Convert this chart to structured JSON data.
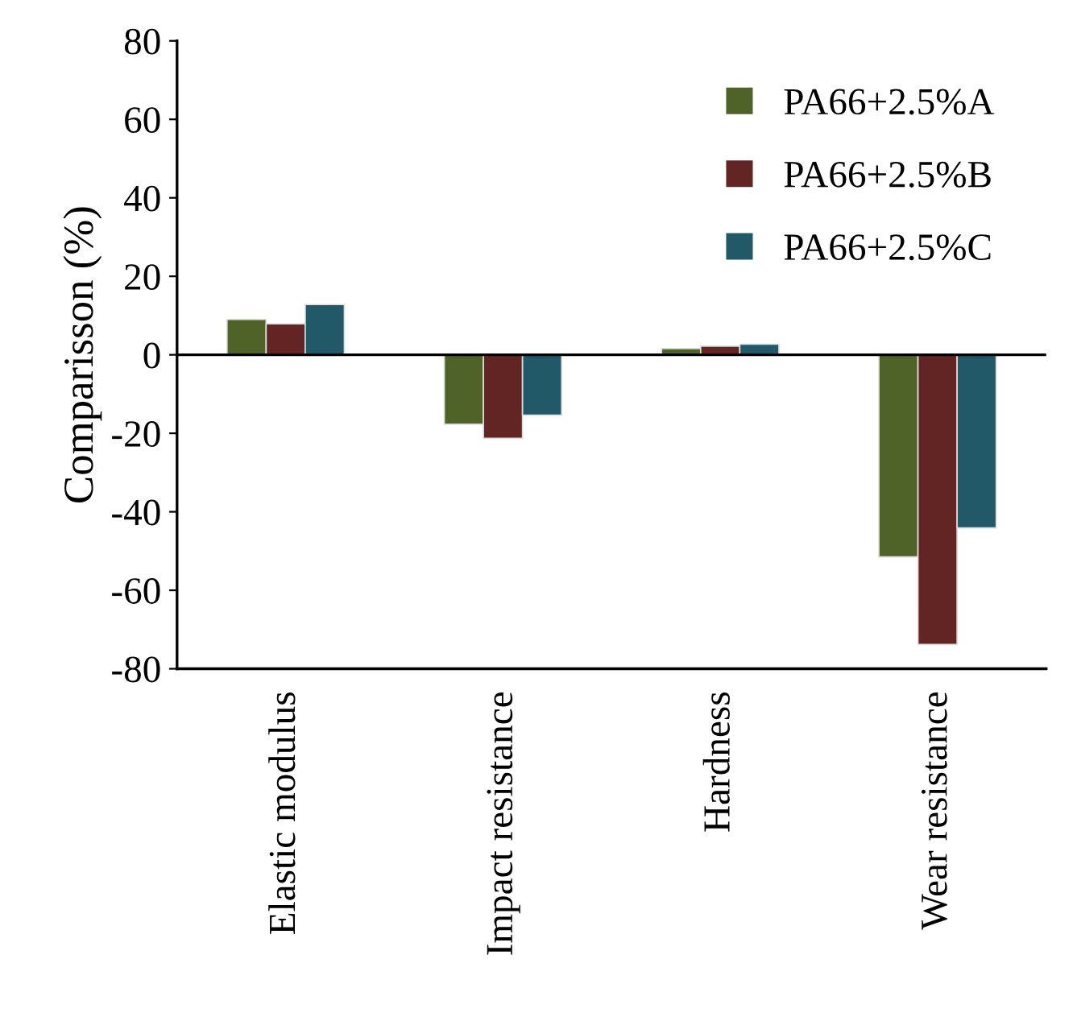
{
  "chart_data": {
    "type": "bar",
    "ylabel": "Comparisson (%)",
    "categories": [
      "Elastic modulus",
      "Impact resistance",
      "Hardness",
      "Wear resistance"
    ],
    "series": [
      {
        "name": "PA66+2.5%A",
        "color": "#4f6228",
        "values": [
          9.0,
          -17.7,
          1.6,
          -51.5
        ]
      },
      {
        "name": "PA66+2.5%B",
        "color": "#632523",
        "values": [
          7.9,
          -21.3,
          2.2,
          -73.8
        ]
      },
      {
        "name": "PA66+2.5%C",
        "color": "#215968",
        "values": [
          12.8,
          -15.4,
          2.7,
          -44.1
        ]
      }
    ],
    "ylim": [
      -80,
      80
    ],
    "yticks": [
      -80,
      -60,
      -40,
      -20,
      0,
      20,
      40,
      60,
      80
    ],
    "ref_lines": [
      {
        "axis": "y",
        "value": 0,
        "color": "#000000"
      }
    ],
    "grid": false,
    "legend": "top right"
  }
}
